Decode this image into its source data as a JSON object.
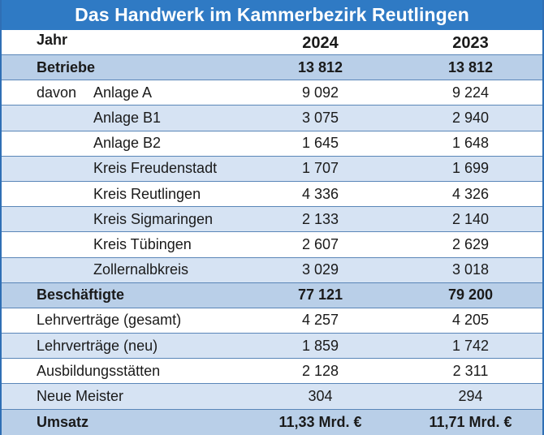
{
  "title": "Das Handwerk im Kammerbezirk Reutlingen",
  "header": {
    "label": "Jahr",
    "year1": "2024",
    "year2": "2023"
  },
  "rows": [
    {
      "label": "Betriebe",
      "v1": "13 812",
      "v2": "13 812"
    },
    {
      "prefix": "davon",
      "label": "Anlage A",
      "v1": "9 092",
      "v2": "9 224"
    },
    {
      "label": "Anlage B1",
      "v1": "3 075",
      "v2": "2 940"
    },
    {
      "label": "Anlage B2",
      "v1": "1 645",
      "v2": "1 648"
    },
    {
      "label": "Kreis Freudenstadt",
      "v1": "1 707",
      "v2": "1 699"
    },
    {
      "label": "Kreis Reutlingen",
      "v1": "4 336",
      "v2": "4 326"
    },
    {
      "label": "Kreis Sigmaringen",
      "v1": "2 133",
      "v2": "2 140"
    },
    {
      "label": "Kreis Tübingen",
      "v1": "2 607",
      "v2": "2 629"
    },
    {
      "label": "Zollernalbkreis",
      "v1": "3 029",
      "v2": "3 018"
    },
    {
      "label": "Beschäftigte",
      "v1": "77 121",
      "v2": "79 200"
    },
    {
      "label": "Lehrverträge (gesamt)",
      "v1": "4 257",
      "v2": "4 205"
    },
    {
      "label": "Lehrverträge (neu)",
      "v1": "1 859",
      "v2": "1 742"
    },
    {
      "label": "Ausbildungsstätten",
      "v1": "2 128",
      "v2": "2 311"
    },
    {
      "label": "Neue Meister",
      "v1": "304",
      "v2": "294"
    },
    {
      "label": "Umsatz",
      "v1": "11,33 Mrd. €",
      "v2": "11,71 Mrd. €"
    }
  ],
  "colors": {
    "title_bg": "#2f7ac4",
    "shade": "#d6e3f3",
    "strong": "#b9cfe8",
    "border": "#5a86b8"
  }
}
